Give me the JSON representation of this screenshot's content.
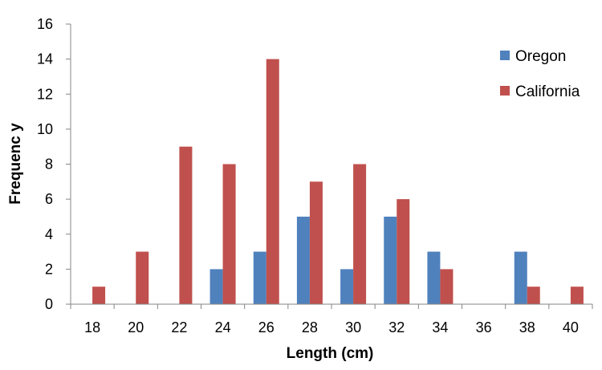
{
  "chart_data": {
    "type": "bar",
    "title": "",
    "xlabel": "Length (cm)",
    "ylabel": "Frequenc y",
    "categories": [
      "18",
      "20",
      "22",
      "24",
      "26",
      "28",
      "30",
      "32",
      "34",
      "36",
      "38",
      "40"
    ],
    "series": [
      {
        "name": "Oregon",
        "color": "#4f81bd",
        "values": [
          0,
          0,
          0,
          2,
          3,
          5,
          2,
          5,
          3,
          0,
          3,
          0
        ]
      },
      {
        "name": "California",
        "color": "#c0504d",
        "values": [
          1,
          3,
          9,
          8,
          14,
          7,
          8,
          6,
          2,
          0,
          1,
          1
        ]
      }
    ],
    "ylim": [
      0,
      16
    ],
    "yticks": [
      0,
      2,
      4,
      6,
      8,
      10,
      12,
      14,
      16
    ],
    "grid": false,
    "legend_position": "top-right"
  }
}
